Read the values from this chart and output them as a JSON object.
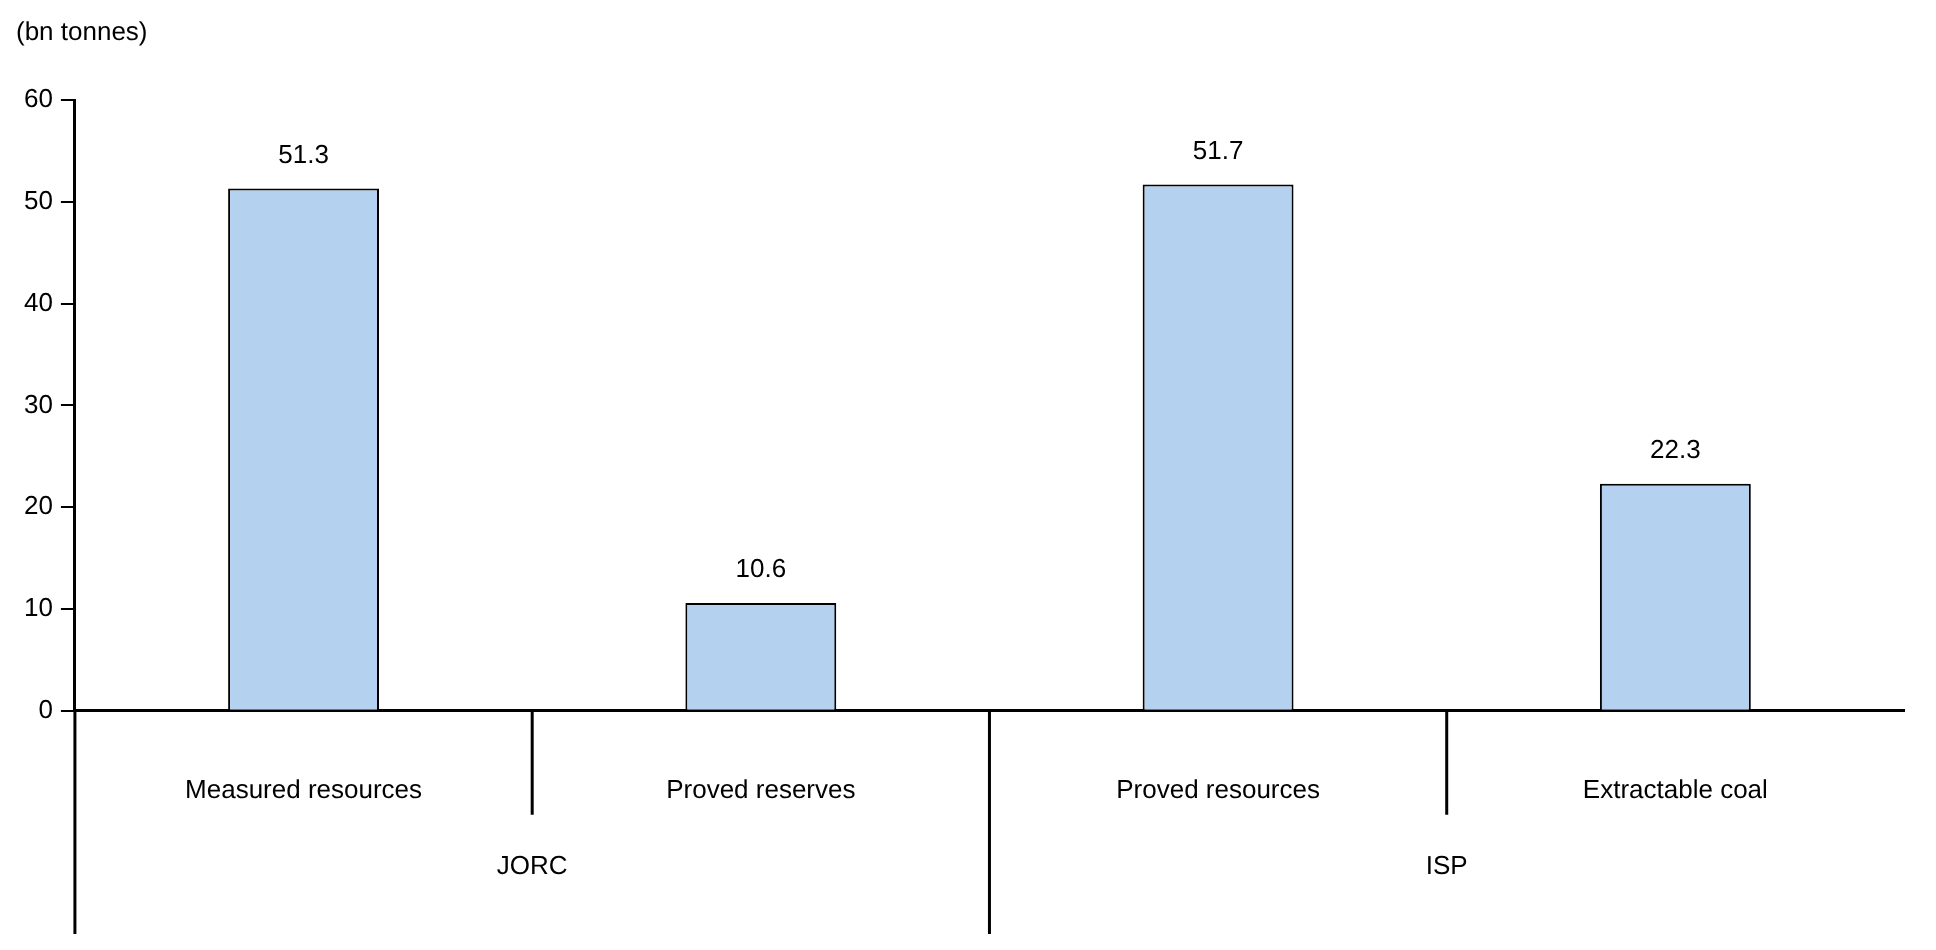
{
  "chart_data": {
    "type": "bar",
    "ylabel": "(bn tonnes)",
    "categories": [
      "Measured resources",
      "Proved reserves",
      "Proved resources",
      "Extractable coal"
    ],
    "values": [
      51.3,
      10.6,
      51.7,
      22.3
    ],
    "color": "#b4d2f0",
    "ylim": [
      0,
      60
    ],
    "yticks": [
      0,
      10,
      20,
      30,
      40,
      50,
      60
    ],
    "grid": false,
    "legend": false,
    "data_labels": true,
    "annotations": [
      "JORC",
      "ISP"
    ]
  }
}
